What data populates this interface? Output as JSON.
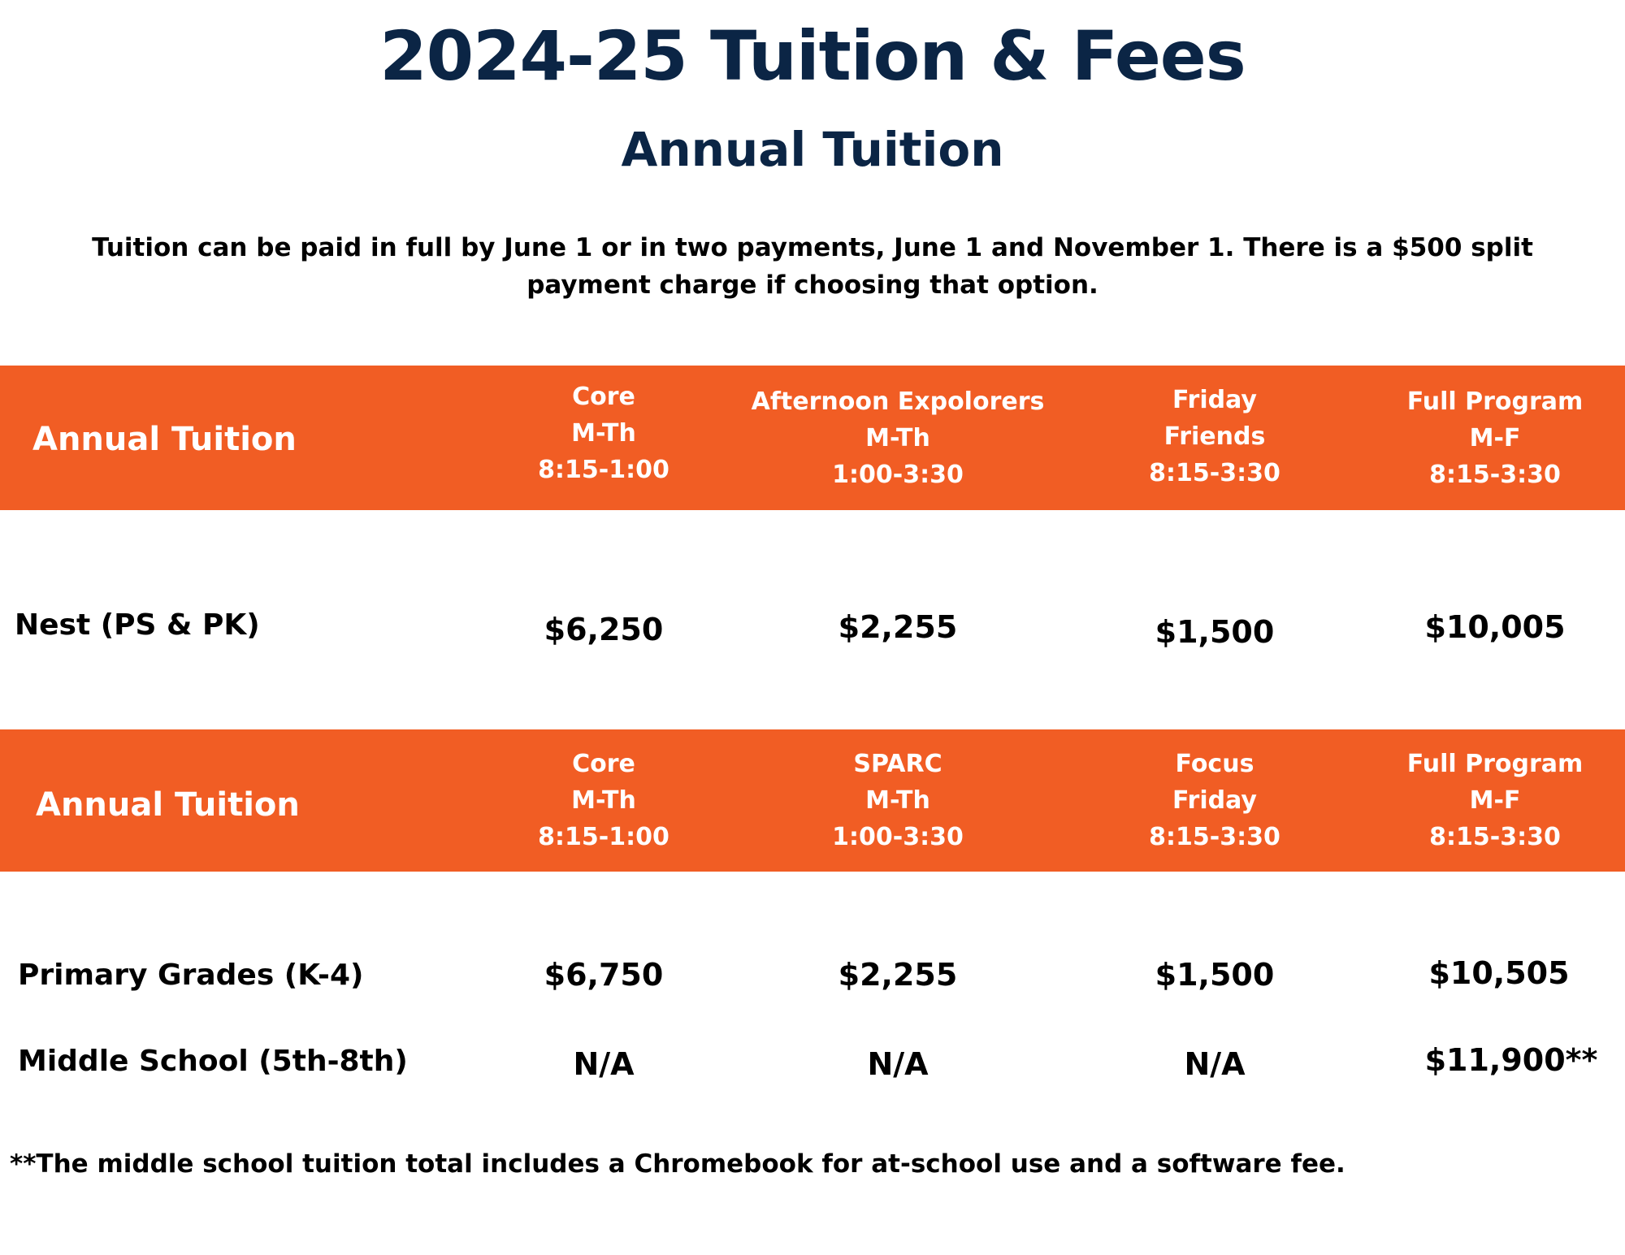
{
  "title": "2024-25 Tuition & Fees",
  "subtitle": "Annual Tuition",
  "note": "Tuition can be paid in full by June 1 or in two payments, June 1 and November 1. There is a $500 split payment charge if choosing that option.",
  "colors": {
    "header_band": "#f15d24",
    "title_navy": "#0b2545",
    "band_text": "#ffffff"
  },
  "table1": {
    "header_label": "Annual Tuition",
    "columns": [
      {
        "l1": "Core",
        "l2": "M-Th",
        "l3": "8:15-1:00"
      },
      {
        "l1": "Afternoon Expolorers",
        "l2": "M-Th",
        "l3": "1:00-3:30"
      },
      {
        "l1": "Friday",
        "l2": "Friends",
        "l3": "8:15-3:30"
      },
      {
        "l1": "Full Program",
        "l2": "M-F",
        "l3": "8:15-3:30"
      }
    ],
    "rows": [
      {
        "label": "Nest (PS & PK)",
        "values": [
          "$6,250",
          "$2,255",
          "$1,500",
          "$10,005"
        ]
      }
    ]
  },
  "table2": {
    "header_label": "Annual Tuition",
    "columns": [
      {
        "l1": "Core",
        "l2": "M-Th",
        "l3": "8:15-1:00"
      },
      {
        "l1": "SPARC",
        "l2": "M-Th",
        "l3": "1:00-3:30"
      },
      {
        "l1": "Focus",
        "l2": "Friday",
        "l3": "8:15-3:30"
      },
      {
        "l1": "Full Program",
        "l2": "M-F",
        "l3": "8:15-3:30"
      }
    ],
    "rows": [
      {
        "label": "Primary Grades (K-4)",
        "values": [
          "$6,750",
          "$2,255",
          "$1,500",
          "$10,505"
        ]
      },
      {
        "label": "Middle School (5th-8th)",
        "values": [
          "N/A",
          "N/A",
          "N/A",
          "$11,900**"
        ]
      }
    ]
  },
  "footnote": "**The middle school tuition total includes a Chromebook for at-school use and a software fee."
}
